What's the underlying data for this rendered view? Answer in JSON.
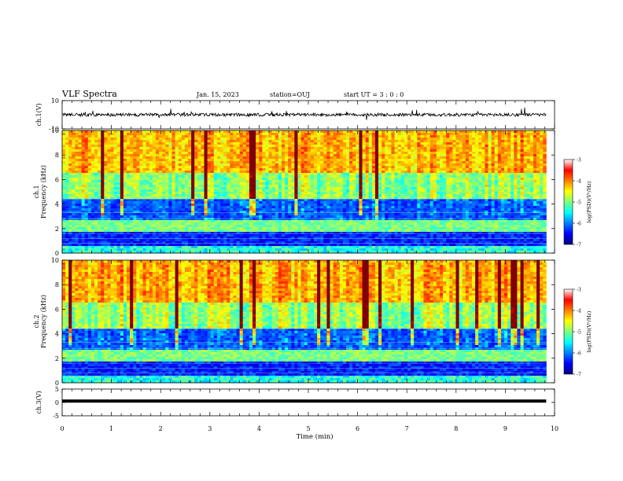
{
  "header": {
    "title": "VLF Spectra",
    "date": "Jan. 15, 2023",
    "station": "station=OUJ",
    "start": "start  UT =   3 : 0  : 0"
  },
  "chart_data": [
    {
      "type": "line",
      "panel": "ch1-waveform",
      "ylabel": "ch.1(V)",
      "ylim": [
        -10,
        10
      ],
      "yticks": [
        "10",
        "-10"
      ],
      "x_range_min": [
        0,
        9.83
      ],
      "trace_level_V": 0
    },
    {
      "type": "heatmap",
      "panel": "ch1-spectrogram",
      "ylabel_channel": "ch.1",
      "ylabel": "Frequency  (kHz)",
      "ylim": [
        0,
        10
      ],
      "yticks": [
        "0",
        "2",
        "4",
        "6",
        "8",
        "10"
      ],
      "x_range_min": [
        0,
        9.83
      ],
      "colorbar": {
        "label": "log(PSD)(V²/Hz)",
        "range": [
          -7,
          -3
        ],
        "ticks": [
          "-3",
          "-4",
          "-5",
          "-6",
          "-7"
        ]
      }
    },
    {
      "type": "heatmap",
      "panel": "ch2-spectrogram",
      "ylabel_channel": "ch.2",
      "ylabel": "Frequency  (kHz)",
      "ylim": [
        0,
        10
      ],
      "yticks": [
        "0",
        "2",
        "4",
        "6",
        "8",
        "10"
      ],
      "x_range_min": [
        0,
        9.83
      ],
      "colorbar": {
        "label": "log(PSD)(V²/Hz)",
        "range": [
          -7,
          -3
        ],
        "ticks": [
          "-3",
          "-4",
          "-5",
          "-6",
          "-7"
        ]
      }
    },
    {
      "type": "line",
      "panel": "ch3-waveform",
      "ylabel": "ch.3(V)",
      "ylim": [
        -5,
        5
      ],
      "yticks": [
        "5",
        "0",
        "-5"
      ],
      "x_range_min": [
        0,
        9.83
      ],
      "trace_level_V": 0.5
    }
  ],
  "xaxis": {
    "label": "Time  (min)",
    "range": [
      0,
      10
    ],
    "ticks": [
      "0",
      "1",
      "2",
      "3",
      "4",
      "5",
      "6",
      "7",
      "8",
      "9",
      "10"
    ]
  },
  "colors": {
    "jet": [
      "#00007f",
      "#0000ff",
      "#007fff",
      "#00ffff",
      "#7fff7f",
      "#ffff00",
      "#ff7f00",
      "#ff0000",
      "#7f0000"
    ]
  }
}
